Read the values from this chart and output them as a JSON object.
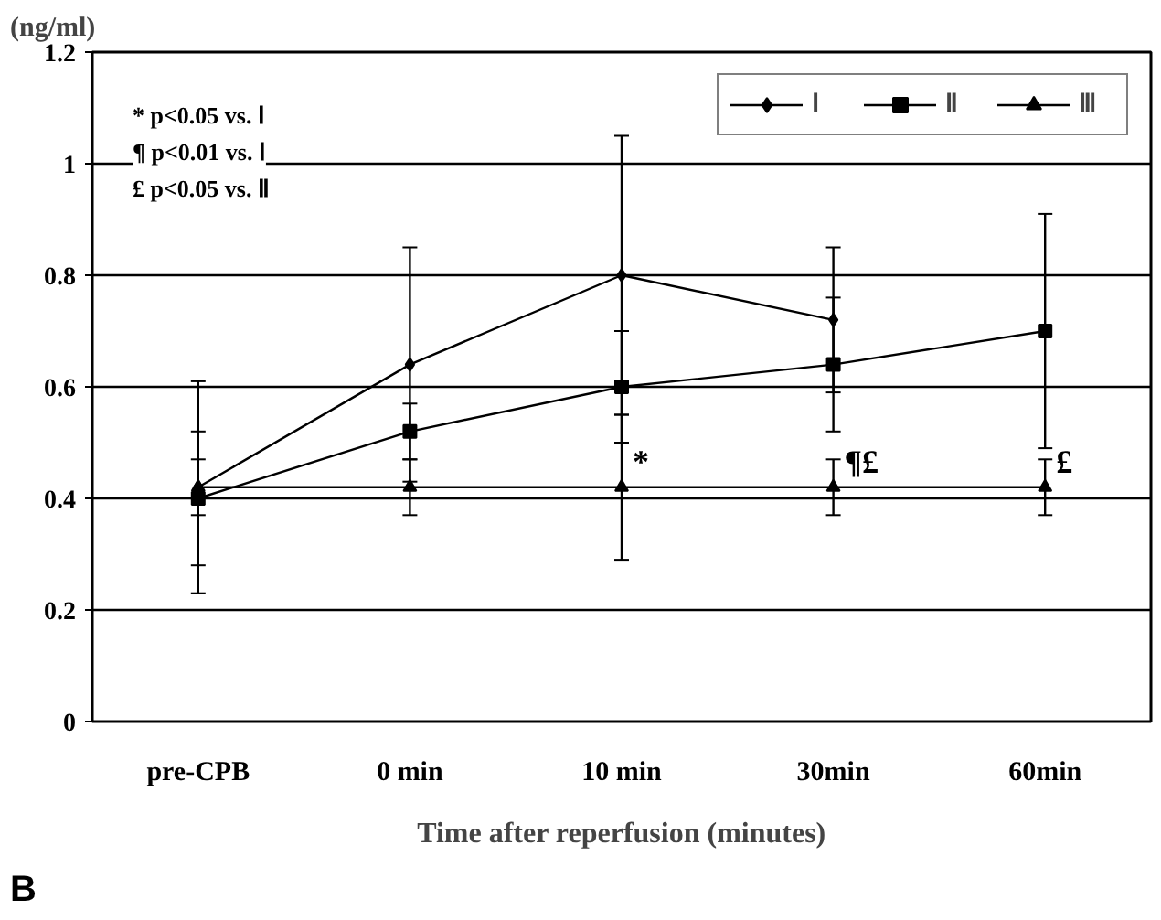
{
  "chart_data": {
    "type": "line",
    "title": "B",
    "xlabel": "Time after reperfusion (minutes)",
    "ylabel": "(ng/ml)",
    "categories": [
      "pre-CPB",
      "0 min",
      "10 min",
      "30min",
      "60min"
    ],
    "series": [
      {
        "name": "Ⅰ",
        "color": "#000000",
        "marker": "diamond",
        "values": [
          0.42,
          0.64,
          0.8,
          0.72,
          null
        ],
        "errors": [
          0.19,
          0.21,
          0.25,
          0.13,
          null
        ]
      },
      {
        "name": "Ⅱ",
        "color": "#000000",
        "marker": "square",
        "values": [
          0.4,
          0.52,
          0.6,
          0.64,
          0.7
        ],
        "errors": [
          0.12,
          0.05,
          0.1,
          0.12,
          0.21
        ]
      },
      {
        "name": "Ⅲ",
        "color": "#000000",
        "marker": "triangle",
        "values": [
          0.42,
          0.42,
          0.42,
          0.42,
          0.42
        ],
        "errors": [
          0.05,
          0.05,
          0.13,
          0.05,
          0.05
        ]
      }
    ],
    "ylim": [
      0,
      1.2
    ],
    "yticks": [
      0,
      0.2,
      0.4,
      0.6,
      0.8,
      1,
      1.2
    ],
    "grid": "y",
    "legend": "top right",
    "line_style": "solid",
    "annotations": [
      "* p<0.05 vs. Ⅰ",
      "¶ p<0.01 vs. Ⅰ",
      "£ p<0.05 vs. Ⅱ",
      {
        "text": "*",
        "x": "10 min",
        "y": 0.42
      },
      {
        "text": "¶£",
        "x": "30min",
        "y": 0.42
      },
      {
        "text": "£",
        "x": "60min",
        "y": 0.42
      }
    ]
  }
}
